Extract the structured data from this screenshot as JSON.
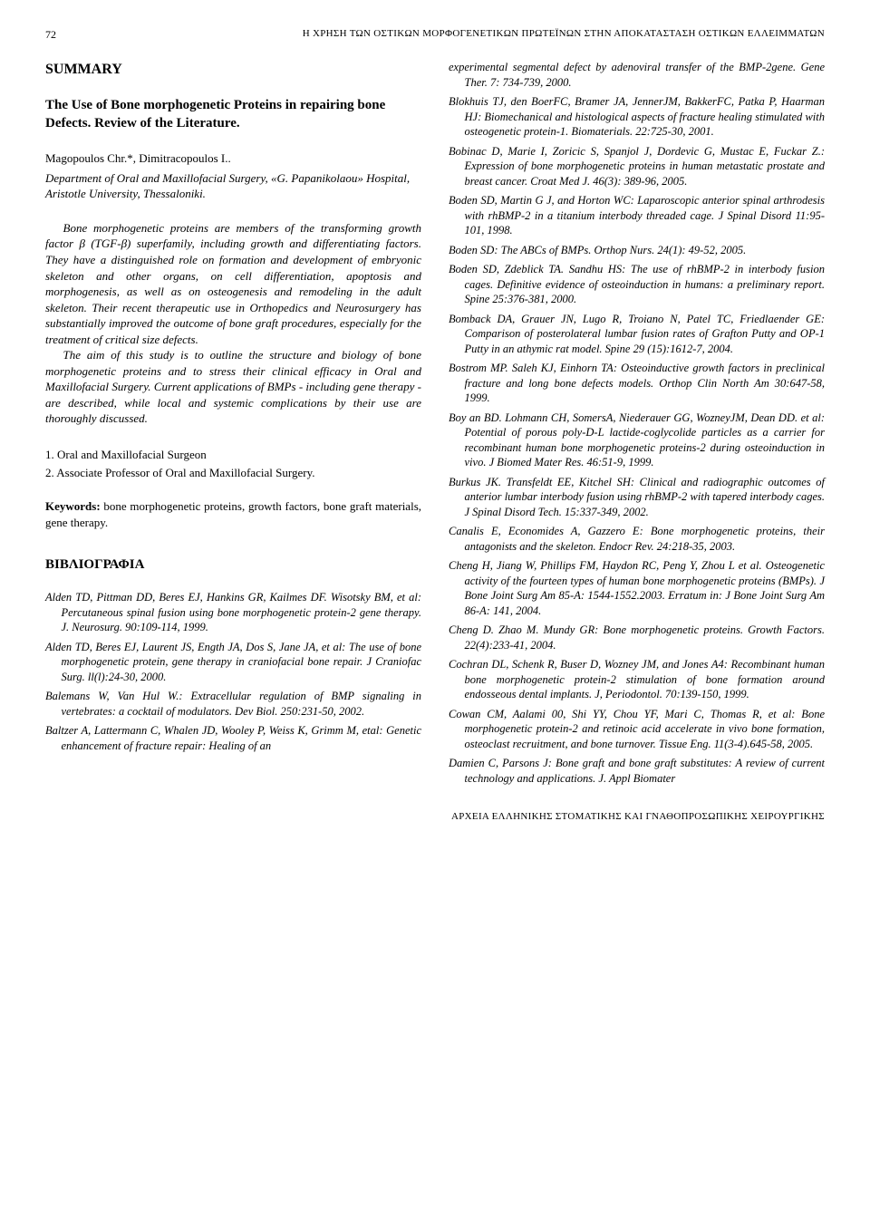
{
  "header": {
    "page_number": "72",
    "running_title": "Η ΧΡΗΣΗ ΤΩΝ ΟΣΤΙΚΩΝ ΜΟΡΦΟΓΕΝΕΤΙΚΩΝ ΠΡΩΤΕΪΝΩΝ ΣΤΗΝ ΑΠΟΚΑΤΑΣΤΑΣΗ ΟΣΤΙΚΩΝ ΕΛΛΕΙΜΜΑΤΩΝ"
  },
  "left": {
    "summary_heading": "SUMMARY",
    "title": "The Use of Bone morphogenetic Proteins in repairing bone Defects. Review of the Literature.",
    "authors": "Magopoulos Chr.*, Dimitracopoulos I..",
    "affiliation": "Department of Oral and Maxillofacial Surgery, «G. Papanikolaou» Hospital, Aristotle University, Thessaloniki.",
    "abstract": [
      "Bone morphogenetic proteins are members of the transforming growth factor β (TGF-β) superfamily, including growth and differentiating factors. They have a distinguished role on formation and development of embryonic skeleton and other organs, on cell differentiation, apoptosis and morphogenesis, as well as on osteogenesis and remodeling in the adult skeleton. Their recent therapeutic use in Orthopedics and Neurosurgery has substantially improved the outcome of bone graft procedures, especially for the treatment of critical size defects.",
      "The aim of this study is to outline the structure and biology of bone morphogenetic proteins and to stress their clinical efficacy in Oral and Maxillofacial Surgery. Current applications of BMPs - including gene therapy - are described, while local and systemic complications by their use are thoroughly discussed."
    ],
    "author_notes": [
      "1. Oral and Maxillofacial Surgeon",
      "2. Associate Professor of Oral and Maxillofacial Surgery."
    ],
    "keywords_label": "Keywords:",
    "keywords_text": " bone morphogenetic proteins, growth factors, bone graft materials, gene therapy.",
    "bib_heading": "ΒΙΒΛΙΟΓΡΑΦΙΑ",
    "refs": [
      "Alden TD, Pittman DD, Beres EJ, Hankins GR, Kailmes DF. Wisotsky BM, et al: Percutaneous spinal fusion using bone morphogenetic protein-2 gene therapy. J. Neurosurg. 90:109-114, 1999.",
      "Alden TD, Beres EJ, Laurent JS, Ength JA, Dos S, Jane JA, et al: The use of bone morphogenetic protein, gene therapy in craniofacial bone repair. J Craniofac Surg. ll(l):24-30, 2000.",
      "Balemans W, Van Hul W.: Extracellular regulation of BMP signaling in vertebrates: a cocktail of modulators. Dev Biol. 250:231-50, 2002.",
      "Baltzer A, Lattermann C, Whalen JD, Wooley P, Weiss K, Grimm M, etal: Genetic enhancement of fracture repair: Healing of an"
    ]
  },
  "right": {
    "refs": [
      "experimental segmental defect by adenoviral transfer of the BMP-2gene. Gene Ther. 7: 734-739, 2000.",
      "Blokhuis TJ, den BoerFC, Bramer JA, JennerJM, BakkerFC, Patka P, Haarman HJ: Biomechanical and histological aspects of fracture healing stimulated with osteogenetic protein-1. Biomaterials. 22:725-30, 2001.",
      "Bobinac D, Marie I, Zoricic S, Spanjol J, Dordevic G, Mustac E, Fuckar Z.: Expression of bone morphogenetic proteins in human metastatic prostate and breast cancer. Croat Med J. 46(3): 389-96, 2005.",
      "Boden SD, Martin G J, and Horton WC: Laparoscopic anterior spinal arthrodesis with rhBMP-2 in a titanium interbody threaded cage. J Spinal Disord 11:95-101, 1998.",
      "Boden SD: The ABCs of BMPs. Orthop Nurs. 24(1): 49-52, 2005.",
      "Boden SD, Zdeblick TA. Sandhu HS: The use of rhBMP-2 in interbody fusion cages. Definitive evidence of osteoinduction in humans: a preliminary report. Spine 25:376-381, 2000.",
      "Bomback DA, Grauer JN, Lugo R, Troiano N, Patel TC, Friedlaender GE: Comparison of posterolateral lumbar fusion rates of Grafton Putty and OP-1 Putty in an athymic rat model. Spine 29 (15):1612-7, 2004.",
      "Bostrom MP. Saleh KJ, Einhorn TA: Osteoinductive growth factors in preclinical fracture and long bone defects models. Orthop Clin North Am 30:647-58, 1999.",
      "Boy an BD. Lohmann CH, SomersA, Niederauer GG, WozneyJM, Dean DD. et al: Potential of porous poly-D-L lactide-coglycolide particles as a carrier for recombinant human bone morphogenetic proteins-2 during osteoinduction in vivo. J Biomed Mater Res. 46:51-9, 1999.",
      "Burkus JK. Transfeldt EE, Kitchel SH: Clinical and radiographic outcomes of anterior lumbar interbody fusion using rhBMP-2 with tapered interbody cages. J Spinal Disord Tech. 15:337-349, 2002.",
      "Canalis E, Economides A, Gazzero E: Bone morphogenetic proteins, their antagonists and the skeleton. Endocr Rev. 24:218-35, 2003.",
      "Cheng H, Jiang W, Phillips FM, Haydon RC, Peng Y, Zhou L et al. Osteogenetic activity of the fourteen types of human bone morphogenetic proteins (BMPs). J Bone Joint Surg Am 85-A: 1544-1552.2003. Erratum in: J Bone Joint Surg Am 86-A: 141, 2004.",
      "Cheng D. Zhao M. Mundy GR: Bone morphogenetic proteins. Growth Factors. 22(4):233-41, 2004.",
      "Cochran DL, Schenk R, Buser D, Wozney JM, and Jones A4: Recombinant human bone morphogenetic protein-2 stimulation of bone formation around endosseous dental implants. J, Periodontol. 70:139-150, 1999.",
      "Cowan CM, Aalami 00, Shi YY, Chou YF, Mari C, Thomas R, et al: Bone morphogenetic protein-2 and retinoic acid accelerate in vivo bone formation, osteoclast recruitment, and bone turnover. Tissue Eng. 11(3-4).645-58, 2005.",
      "Damien C, Parsons J: Bone graft and bone graft substitutes: A review of current technology and applications. J. Appl Biomater"
    ]
  },
  "footer": "ΑΡΧΕΙΑ ΕΛΛΗΝΙΚΗΣ ΣΤΟΜΑΤΙΚΗΣ ΚΑΙ ΓΝΑΘΟΠΡΟΣΩΠΙΚΗΣ ΧΕΙΡΟΥΡΓΙΚΗΣ"
}
